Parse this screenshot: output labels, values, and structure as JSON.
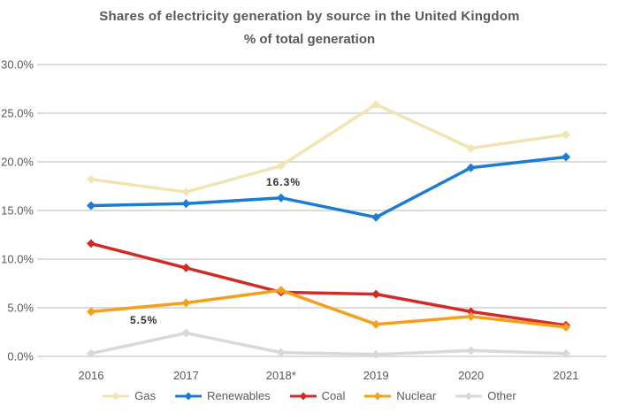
{
  "chart_data": {
    "type": "line",
    "title": "Shares of electricity generation by source in the United Kingdom",
    "subtitle": "% of total generation",
    "categories": [
      "2016",
      "2017",
      "2018*",
      "2019",
      "2020",
      "2021"
    ],
    "ylim": [
      0,
      30
    ],
    "ytick_labels": [
      "0.0%",
      "5.0%",
      "10.0%",
      "15.0%",
      "20.0%",
      "25.0%",
      "30.0%"
    ],
    "grid": "horizontal",
    "legend_position": "bottom",
    "marker": "diamond",
    "series": [
      {
        "name": "Other",
        "color": "#D8D8D8",
        "values": [
          0.3,
          2.4,
          0.4,
          0.2,
          0.6,
          0.3
        ]
      },
      {
        "name": "Gas",
        "color": "#F2E4B2",
        "values": [
          18.2,
          16.9,
          19.6,
          25.9,
          21.4,
          22.8
        ]
      },
      {
        "name": "Coal",
        "color": "#D22B27",
        "values": [
          11.6,
          9.1,
          6.6,
          6.4,
          4.6,
          3.2
        ]
      },
      {
        "name": "Nuclear",
        "color": "#F5A01D",
        "values": [
          4.6,
          5.5,
          6.8,
          3.3,
          4.1,
          3.0
        ]
      },
      {
        "name": "Renewables",
        "color": "#1B7CD1",
        "values": [
          15.5,
          15.7,
          16.3,
          14.3,
          19.4,
          20.5
        ]
      }
    ],
    "legend_order": [
      "Gas",
      "Renewables",
      "Coal",
      "Nuclear",
      "Other"
    ],
    "annotations": [
      {
        "text": "16.3%"
      },
      {
        "text": "5.5%"
      }
    ],
    "grid_color": "#DCDCDC",
    "text_color": "#595959"
  }
}
